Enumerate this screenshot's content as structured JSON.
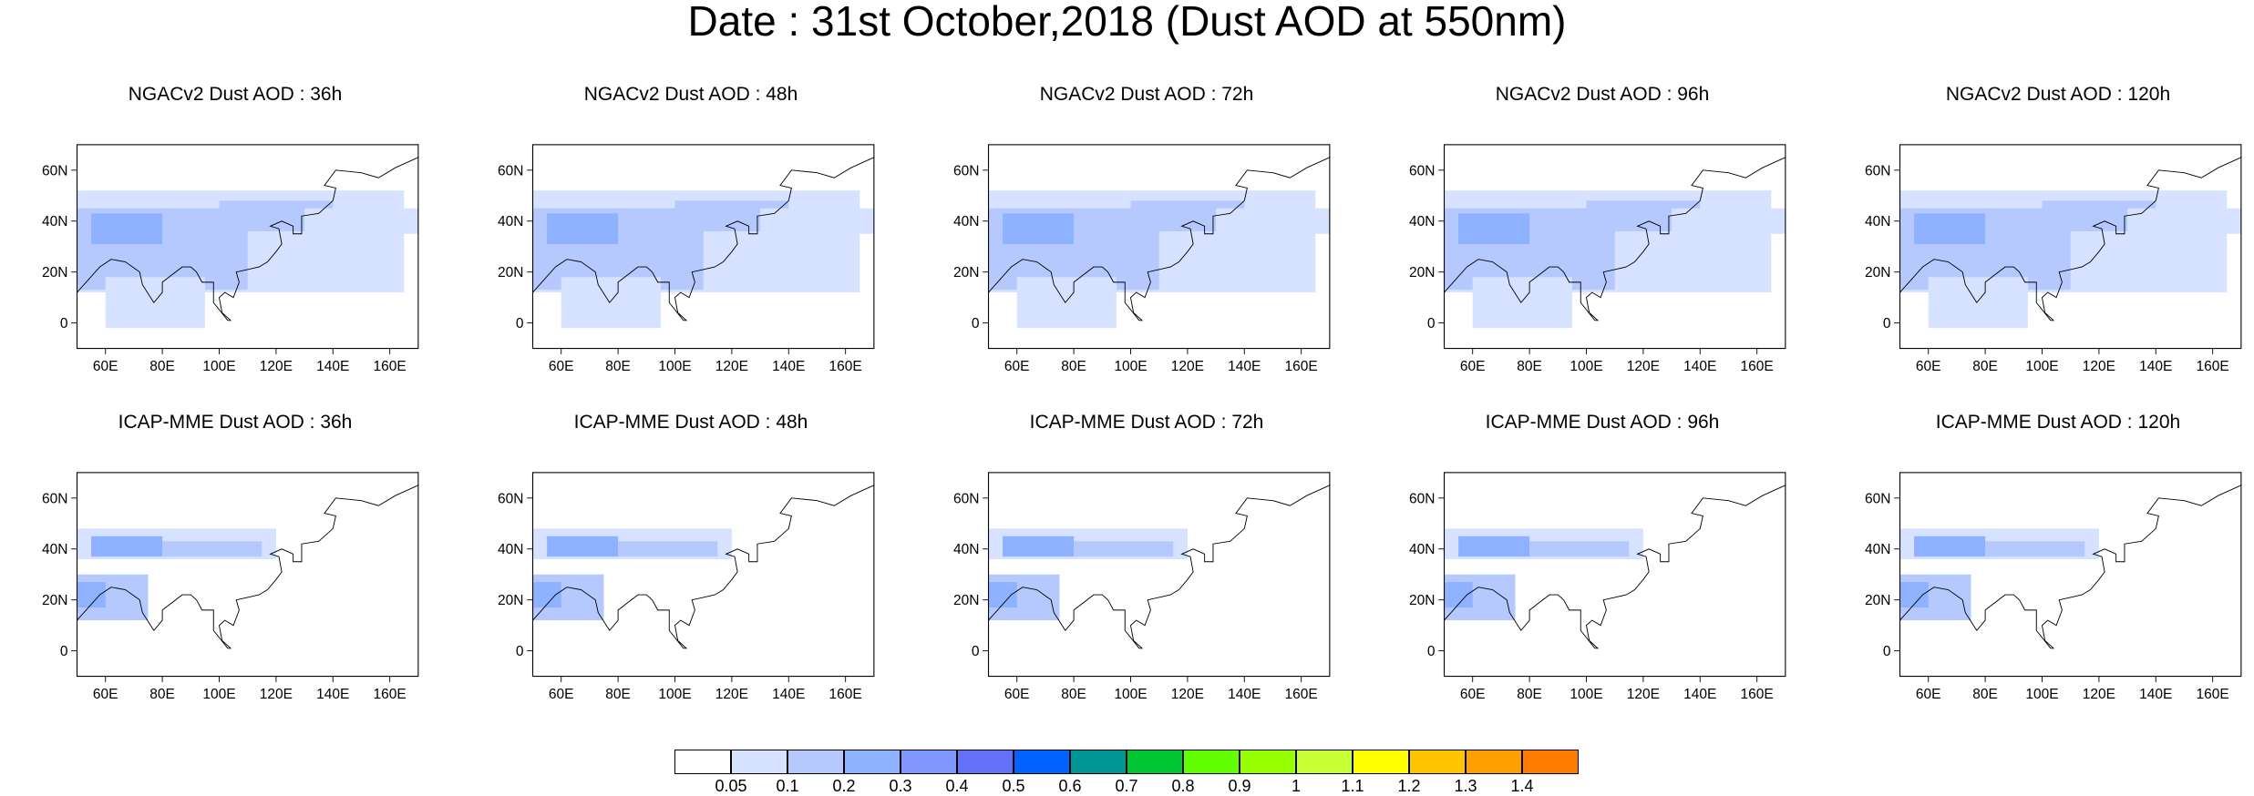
{
  "main_title": "Date : 31st October,2018 (Dust AOD at 550nm)",
  "panels": [
    {
      "title": "NGACv2 Dust AOD : 36h",
      "model": "NGACv2",
      "lead": "36h"
    },
    {
      "title": "NGACv2 Dust AOD : 48h",
      "model": "NGACv2",
      "lead": "48h"
    },
    {
      "title": "NGACv2 Dust AOD : 72h",
      "model": "NGACv2",
      "lead": "72h"
    },
    {
      "title": "NGACv2 Dust AOD : 96h",
      "model": "NGACv2",
      "lead": "96h"
    },
    {
      "title": "NGACv2 Dust AOD : 120h",
      "model": "NGACv2",
      "lead": "120h"
    },
    {
      "title": "ICAP-MME Dust AOD : 36h",
      "model": "ICAP-MME",
      "lead": "36h"
    },
    {
      "title": "ICAP-MME Dust AOD : 48h",
      "model": "ICAP-MME",
      "lead": "48h"
    },
    {
      "title": "ICAP-MME Dust AOD : 72h",
      "model": "ICAP-MME",
      "lead": "72h"
    },
    {
      "title": "ICAP-MME Dust AOD : 96h",
      "model": "ICAP-MME",
      "lead": "96h"
    },
    {
      "title": "ICAP-MME Dust AOD : 120h",
      "model": "ICAP-MME",
      "lead": "120h"
    }
  ],
  "axes": {
    "lon_ticks": [
      "60E",
      "80E",
      "100E",
      "120E",
      "140E",
      "160E"
    ],
    "lon_values": [
      60,
      80,
      100,
      120,
      140,
      160
    ],
    "lat_ticks": [
      "60N",
      "40N",
      "20N",
      "0"
    ],
    "lat_values": [
      60,
      40,
      20,
      0
    ],
    "lon_range": [
      50,
      170
    ],
    "lat_range": [
      -10,
      70
    ]
  },
  "colorbar": {
    "labels": [
      "0.05",
      "0.1",
      "0.2",
      "0.3",
      "0.4",
      "0.5",
      "0.6",
      "0.7",
      "0.8",
      "0.9",
      "1",
      "1.1",
      "1.2",
      "1.3",
      "1.4"
    ],
    "colors": [
      "#ffffff",
      "#d6e2ff",
      "#b5c9ff",
      "#8eb2ff",
      "#7f96ff",
      "#6370f8",
      "#0063ff",
      "#009696",
      "#00c633",
      "#63ff00",
      "#96ff00",
      "#c6ff33",
      "#ffff00",
      "#ffc600",
      "#ffa000",
      "#ff7c00",
      "#ff1900"
    ]
  }
}
